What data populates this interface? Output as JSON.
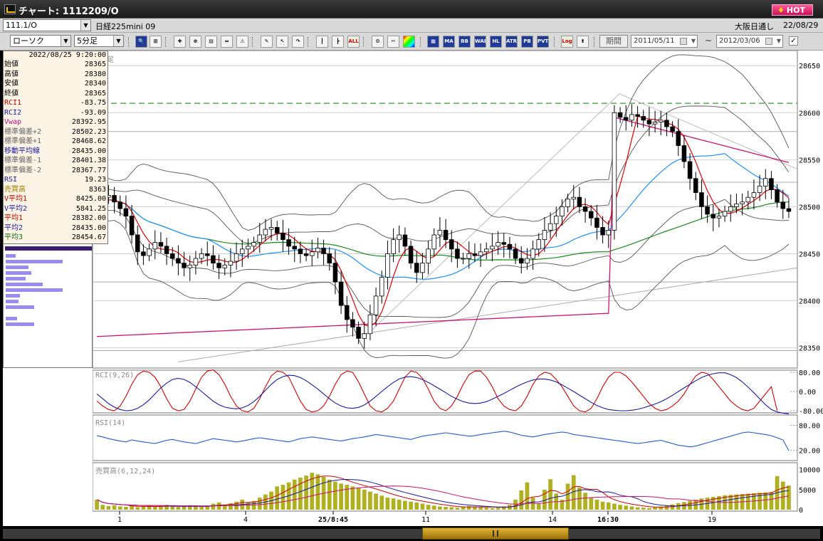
{
  "window": {
    "title": "チャート: 1112209/O",
    "hot_label": "HOT"
  },
  "top_bar": {
    "code_value": "111.1/O",
    "instrument": "日経225mini 09",
    "market": "大阪日通し",
    "date": "22/08/29"
  },
  "toolbar": {
    "chart_type": "ローソク",
    "interval": "5分足",
    "buttons": [
      "search",
      "fit",
      "cross",
      "zoom",
      "panel",
      "split",
      "clear",
      "draw",
      "cursor",
      "redo",
      "candle",
      "bar",
      "ALL",
      "settings",
      "tools",
      "color",
      "grid",
      "MA",
      "BB",
      "HL",
      "ATR",
      "PVT",
      "Log",
      "trend"
    ],
    "period_label": "期間",
    "date_from": "2011/05/11",
    "date_sep": "~",
    "date_to": "2012/03/06",
    "check": "✓"
  },
  "data_panel": {
    "timestamp": "2022/08/25 9:20:00",
    "rows": [
      {
        "label": "始値",
        "value": "28365",
        "color": "#000000"
      },
      {
        "label": "高値",
        "value": "28380",
        "color": "#000000"
      },
      {
        "label": "安値",
        "value": "28340",
        "color": "#000000"
      },
      {
        "label": "終値",
        "value": "28365",
        "color": "#000000"
      },
      {
        "label": "RCI1",
        "value": "-83.75",
        "color": "#c00000"
      },
      {
        "label": "RCI2",
        "value": "-93.09",
        "color": "#1a1aa0"
      },
      {
        "label": "Vwap",
        "value": "28392.95",
        "color": "#c0108a"
      },
      {
        "label": "標準偏差+2",
        "value": "28502.23",
        "color": "#666666"
      },
      {
        "label": "標準偏差+1",
        "value": "28468.62",
        "color": "#666666"
      },
      {
        "label": "移動平均線",
        "value": "28435.00",
        "color": "#1a1aa0"
      },
      {
        "label": "標準偏差-1",
        "value": "28401.38",
        "color": "#666666"
      },
      {
        "label": "標準偏差-2",
        "value": "28367.77",
        "color": "#666666"
      },
      {
        "label": "RSI",
        "value": "19.23",
        "color": "#1a1aa0"
      },
      {
        "label": "売買高",
        "value": "8363",
        "color": "#a08000"
      },
      {
        "label": "V平均1",
        "value": "8425.00",
        "color": "#c00000"
      },
      {
        "label": "V平均2",
        "value": "5841.25",
        "color": "#1a1aa0"
      },
      {
        "label": "平均1",
        "value": "28382.00",
        "color": "#c00000"
      },
      {
        "label": "平均2",
        "value": "28435.00",
        "color": "#1a1aa0"
      },
      {
        "label": "平均3",
        "value": "28454.67",
        "color": "#1a6a1a"
      }
    ]
  },
  "volume_profile": [
    14,
    80,
    32,
    36,
    28,
    52,
    80,
    20,
    18,
    40,
    16,
    40
  ],
  "chart": {
    "price_axis": [
      "28650",
      "28600",
      "28550",
      "28500",
      "28450",
      "28400",
      "28350"
    ],
    "rci_label": "RCI(9,26)",
    "rci_axis": [
      "80.00",
      "0.00",
      "-80.00"
    ],
    "rsi_label": "RSI(14)",
    "rsi_axis": [
      "80.00",
      "20.00"
    ],
    "vol_label": "売買高(6,12,24)",
    "vol_axis": [
      "10000",
      "5000",
      "0"
    ],
    "time_axis": [
      "1",
      "4",
      "25/8:45",
      "11",
      "14",
      "16:30",
      "19"
    ],
    "upper_corner_label": "足"
  },
  "colors": {
    "up": "#ffffff",
    "down": "#000000",
    "bb": "#555555",
    "ma_short": "#e00000",
    "ma_mid": "#1e90ff",
    "ma_long": "#1a8a1a",
    "vwap": "#d01070",
    "dashed": "#1a8a1a",
    "vol": "#b0b020"
  },
  "chart_data": {
    "type": "candlestick",
    "ylim": [
      28330,
      28660
    ],
    "close": [
      28500,
      28510,
      28512,
      28505,
      28498,
      28490,
      28470,
      28452,
      28448,
      28455,
      28462,
      28458,
      28450,
      28445,
      28440,
      28435,
      28438,
      28445,
      28450,
      28448,
      28440,
      28435,
      28438,
      28442,
      28450,
      28455,
      28458,
      28462,
      28470,
      28476,
      28478,
      28472,
      28465,
      28458,
      28455,
      28450,
      28448,
      28452,
      28456,
      28450,
      28440,
      28420,
      28395,
      28380,
      28372,
      28360,
      28365,
      28385,
      28405,
      28425,
      28450,
      28465,
      28470,
      28458,
      28440,
      28430,
      28440,
      28455,
      28470,
      28475,
      28465,
      28455,
      28445,
      28445,
      28450,
      28448,
      28452,
      28455,
      28458,
      28462,
      28460,
      28455,
      28445,
      28440,
      28445,
      28455,
      28465,
      28475,
      28482,
      28490,
      28500,
      28508,
      28510,
      28500,
      28495,
      28488,
      28478,
      28470,
      28475,
      28600,
      28595,
      28592,
      28598,
      28596,
      28592,
      28588,
      28590,
      28592,
      28585,
      28580,
      28565,
      28548,
      28530,
      28515,
      28500,
      28492,
      28488,
      28490,
      28495,
      28500,
      28503,
      28505,
      28510,
      28515,
      28522,
      28530,
      28518,
      28505,
      28498,
      28495
    ],
    "rci1": [
      -40,
      -60,
      -75,
      -80,
      -60,
      -20,
      30,
      70,
      85,
      80,
      60,
      20,
      -30,
      -70,
      -80,
      -75,
      -40,
      10,
      60,
      85,
      90,
      70,
      30,
      -20,
      -60,
      -80,
      -85,
      -70,
      -30,
      20,
      65,
      85,
      80,
      60,
      10,
      -40,
      -75,
      -85,
      -80,
      -60,
      -20,
      30,
      70,
      85,
      80,
      40,
      -10,
      -60,
      -80,
      -85,
      -70,
      -40,
      10,
      60,
      85,
      80,
      55,
      10,
      -40,
      -70,
      -80,
      -60,
      -20,
      30,
      70,
      85,
      85,
      60,
      20,
      -30,
      -60,
      -75,
      -80,
      -60,
      -20,
      30,
      65,
      80,
      75,
      50,
      20,
      -20,
      -60,
      -80,
      -85,
      -70,
      -30,
      20,
      60,
      80,
      80,
      65,
      40,
      10,
      -20,
      -50,
      -70,
      -80,
      -75,
      -60,
      -40,
      -10,
      30,
      65,
      80,
      75,
      50,
      20,
      -10,
      -40,
      -60,
      -75,
      -80,
      -70,
      -40,
      -10,
      20,
      -80
    ],
    "rci2": [
      -10,
      -30,
      -50,
      -65,
      -75,
      -80,
      -78,
      -70,
      -55,
      -35,
      -10,
      15,
      35,
      50,
      55,
      50,
      38,
      20,
      0,
      -20,
      -40,
      -55,
      -65,
      -70,
      -72,
      -68,
      -58,
      -42,
      -20,
      5,
      30,
      50,
      62,
      68,
      66,
      58,
      45,
      28,
      10,
      -10,
      -30,
      -48,
      -60,
      -68,
      -70,
      -66,
      -56,
      -40,
      -20,
      0,
      20,
      38,
      52,
      60,
      62,
      58,
      50,
      38,
      24,
      10,
      -5,
      -20,
      -32,
      -42,
      -48,
      -50,
      -48,
      -42,
      -32,
      -20,
      -8,
      5,
      18,
      30,
      40,
      48,
      52,
      52,
      48,
      40,
      28,
      14,
      0,
      -15,
      -30,
      -45,
      -58,
      -68,
      -75,
      -78,
      -80,
      -80,
      -78,
      -74,
      -68,
      -60,
      -52,
      -42,
      -30,
      -16,
      0,
      15,
      30,
      45,
      58,
      68,
      74,
      78,
      78,
      70,
      58,
      40,
      18,
      -5,
      -30,
      -55,
      -75,
      -85,
      -90,
      -93
    ],
    "rsi": [
      55,
      52,
      48,
      45,
      42,
      40,
      45,
      42,
      40,
      38,
      36,
      40,
      44,
      46,
      43,
      40,
      38,
      36,
      40,
      44,
      48,
      46,
      44,
      42,
      40,
      42,
      45,
      48,
      50,
      48,
      46,
      44,
      42,
      40,
      44,
      48,
      50,
      52,
      50,
      48,
      46,
      44,
      42,
      45,
      48,
      50,
      52,
      55,
      58,
      56,
      54,
      52,
      50,
      48,
      46,
      50,
      54,
      56,
      58,
      60,
      62,
      60,
      58,
      56,
      54,
      55,
      58,
      60,
      62,
      64,
      66,
      64,
      60,
      56,
      54,
      52,
      55,
      58,
      60,
      62,
      64,
      62,
      58,
      56,
      54,
      52,
      50,
      48,
      46,
      44,
      42,
      40,
      38,
      36,
      38,
      40,
      42,
      44,
      40,
      36,
      32,
      30,
      28,
      30,
      34,
      38,
      42,
      46,
      50,
      54,
      58,
      62,
      64,
      62,
      60,
      58,
      55,
      50,
      45,
      19
    ],
    "volume": [
      2500,
      1200,
      900,
      1100,
      800,
      700,
      900,
      600,
      800,
      1000,
      700,
      900,
      1200,
      800,
      700,
      900,
      1100,
      800,
      700,
      900,
      1500,
      1800,
      1300,
      1600,
      2000,
      2500,
      1800,
      2200,
      3000,
      3800,
      4500,
      5800,
      6200,
      6800,
      7500,
      8000,
      8500,
      9200,
      8800,
      8200,
      7500,
      7000,
      6500,
      6200,
      5800,
      5500,
      5000,
      4500,
      4000,
      3500,
      3000,
      2800,
      2500,
      2200,
      2000,
      1800,
      1500,
      1200,
      1000,
      800,
      700,
      600,
      500,
      700,
      900,
      800,
      600,
      500,
      400,
      500,
      800,
      1200,
      2500,
      4800,
      6800,
      3000,
      1500,
      5000,
      7600,
      4000,
      2500,
      6500,
      8600,
      5500,
      4200,
      3000,
      2500,
      2000,
      1800,
      1500,
      1200,
      1000,
      800,
      600,
      500,
      400,
      600,
      800,
      1000,
      1300,
      1600,
      1900,
      2200,
      2500,
      2800,
      3000,
      3200,
      3400,
      3600,
      3700,
      3800,
      3900,
      4000,
      4100,
      4200,
      4300,
      4400,
      8363,
      7000,
      6000
    ]
  }
}
